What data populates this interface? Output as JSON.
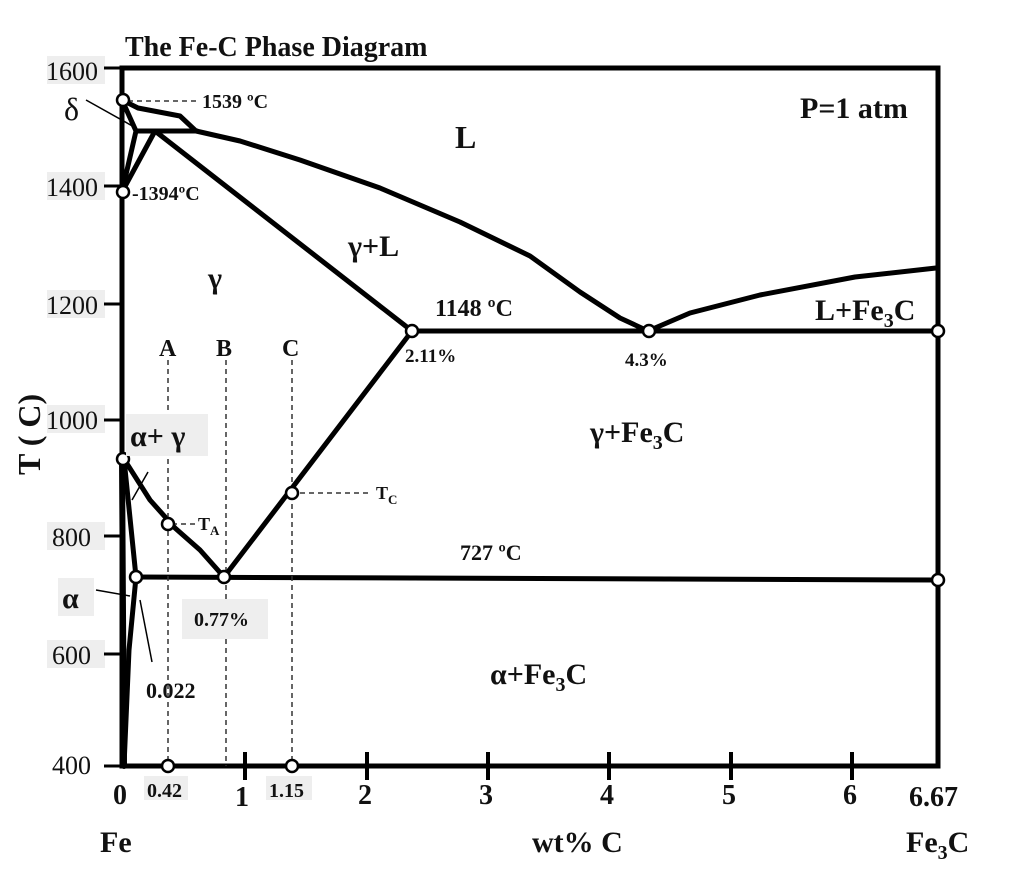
{
  "title": "The Fe-C Phase Diagram",
  "pressure_label": "P=1 atm",
  "y_axis_label": "T ( C)",
  "x_axis_label": "wt% C",
  "left_end_label": "Fe",
  "right_end_label": "Fe",
  "right_end_sub": "3",
  "right_end_tail": "C",
  "y_ticks": [
    "400",
    "600",
    "800",
    "1000",
    "1200",
    "1400",
    "1600"
  ],
  "x_ticks": [
    "0",
    "0.42",
    "1",
    "1.15",
    "2",
    "3",
    "4",
    "5",
    "6",
    "6.67"
  ],
  "phase_labels": {
    "L": "L",
    "delta": "δ",
    "gamma": "γ",
    "gamma_L": "γ+L",
    "alpha_gamma": "α+ γ",
    "alpha": "α",
    "gamma_fe3c_main": "γ+Fe",
    "gamma_fe3c_sub": "3",
    "gamma_fe3c_tail": "C",
    "l_fe3c_main": "L+Fe",
    "l_fe3c_sub": "3",
    "l_fe3c_tail": "C",
    "alpha_fe3c_main": "α+Fe",
    "alpha_fe3c_sub": "3",
    "alpha_fe3c_tail": "C"
  },
  "annotations": {
    "t1539": "1539 ºC",
    "t1394": "1394ºC",
    "t1148": "1148  ºC",
    "t727": "727 ºC",
    "c211": "2.11%",
    "c43": "4.3%",
    "c077": "0.77%",
    "c0022": "0.022",
    "TA_main": "T",
    "TA_sub": "A",
    "TC_main": "T",
    "TC_sub": "C",
    "alloy_A": "A",
    "alloy_B": "B",
    "alloy_C": "C"
  },
  "chart_data": {
    "type": "phase-diagram",
    "title": "The Fe-C Phase Diagram",
    "xlabel": "wt% C",
    "ylabel": "T ( C)",
    "xlim": [
      0,
      6.67
    ],
    "ylim": [
      400,
      1600
    ],
    "lines": {
      "liquidus": [
        [
          0,
          1539
        ],
        [
          0.1,
          1520
        ],
        [
          0.5,
          1493
        ],
        [
          1,
          1460
        ],
        [
          2,
          1390
        ],
        [
          3,
          1300
        ],
        [
          3.8,
          1220
        ],
        [
          4.3,
          1148
        ],
        [
          4.6,
          1180
        ],
        [
          5.5,
          1220
        ],
        [
          6.67,
          1258
        ]
      ],
      "austenite_liquidus": [
        [
          0.3,
          1493
        ],
        [
          2.11,
          1148
        ]
      ],
      "peritectic": [
        [
          0.1,
          1493
        ],
        [
          0.6,
          1493
        ]
      ],
      "delta_left": [
        [
          0,
          1539
        ],
        [
          0.1,
          1493
        ],
        [
          0,
          1394
        ]
      ],
      "gamma_top": [
        [
          0,
          1394
        ],
        [
          0.3,
          1493
        ]
      ],
      "eutectic": [
        [
          2.11,
          1148
        ],
        [
          6.67,
          1148
        ]
      ],
      "acm": [
        [
          0.77,
          727
        ],
        [
          2.11,
          1148
        ]
      ],
      "a3": [
        [
          0,
          912
        ],
        [
          0.3,
          820
        ],
        [
          0.42,
          810
        ],
        [
          0.77,
          727
        ]
      ],
      "eutectoid": [
        [
          0.022,
          727
        ],
        [
          6.67,
          727
        ]
      ],
      "a1_left": [
        [
          0,
          912
        ],
        [
          0.022,
          727
        ]
      ],
      "alpha_solvus": [
        [
          0.022,
          727
        ],
        [
          0,
          400
        ]
      ],
      "alloy_A": 0.42,
      "alloy_B": 0.87,
      "alloy_C": 1.15
    },
    "key_points": [
      {
        "x": 0,
        "y": 1539
      },
      {
        "x": 0,
        "y": 1394
      },
      {
        "x": 0,
        "y": 912
      },
      {
        "x": 0.11,
        "y": 727
      },
      {
        "x": 0.42,
        "y": 810
      },
      {
        "x": 0.87,
        "y": 727
      },
      {
        "x": 1.38,
        "y": 875
      },
      {
        "x": 2.4,
        "y": 1148
      },
      {
        "x": 4.3,
        "y": 1148
      },
      {
        "x": 6.67,
        "y": 1148
      },
      {
        "x": 6.67,
        "y": 727
      },
      {
        "x": 0.42,
        "y": 400
      },
      {
        "x": 1.38,
        "y": 400
      }
    ]
  }
}
